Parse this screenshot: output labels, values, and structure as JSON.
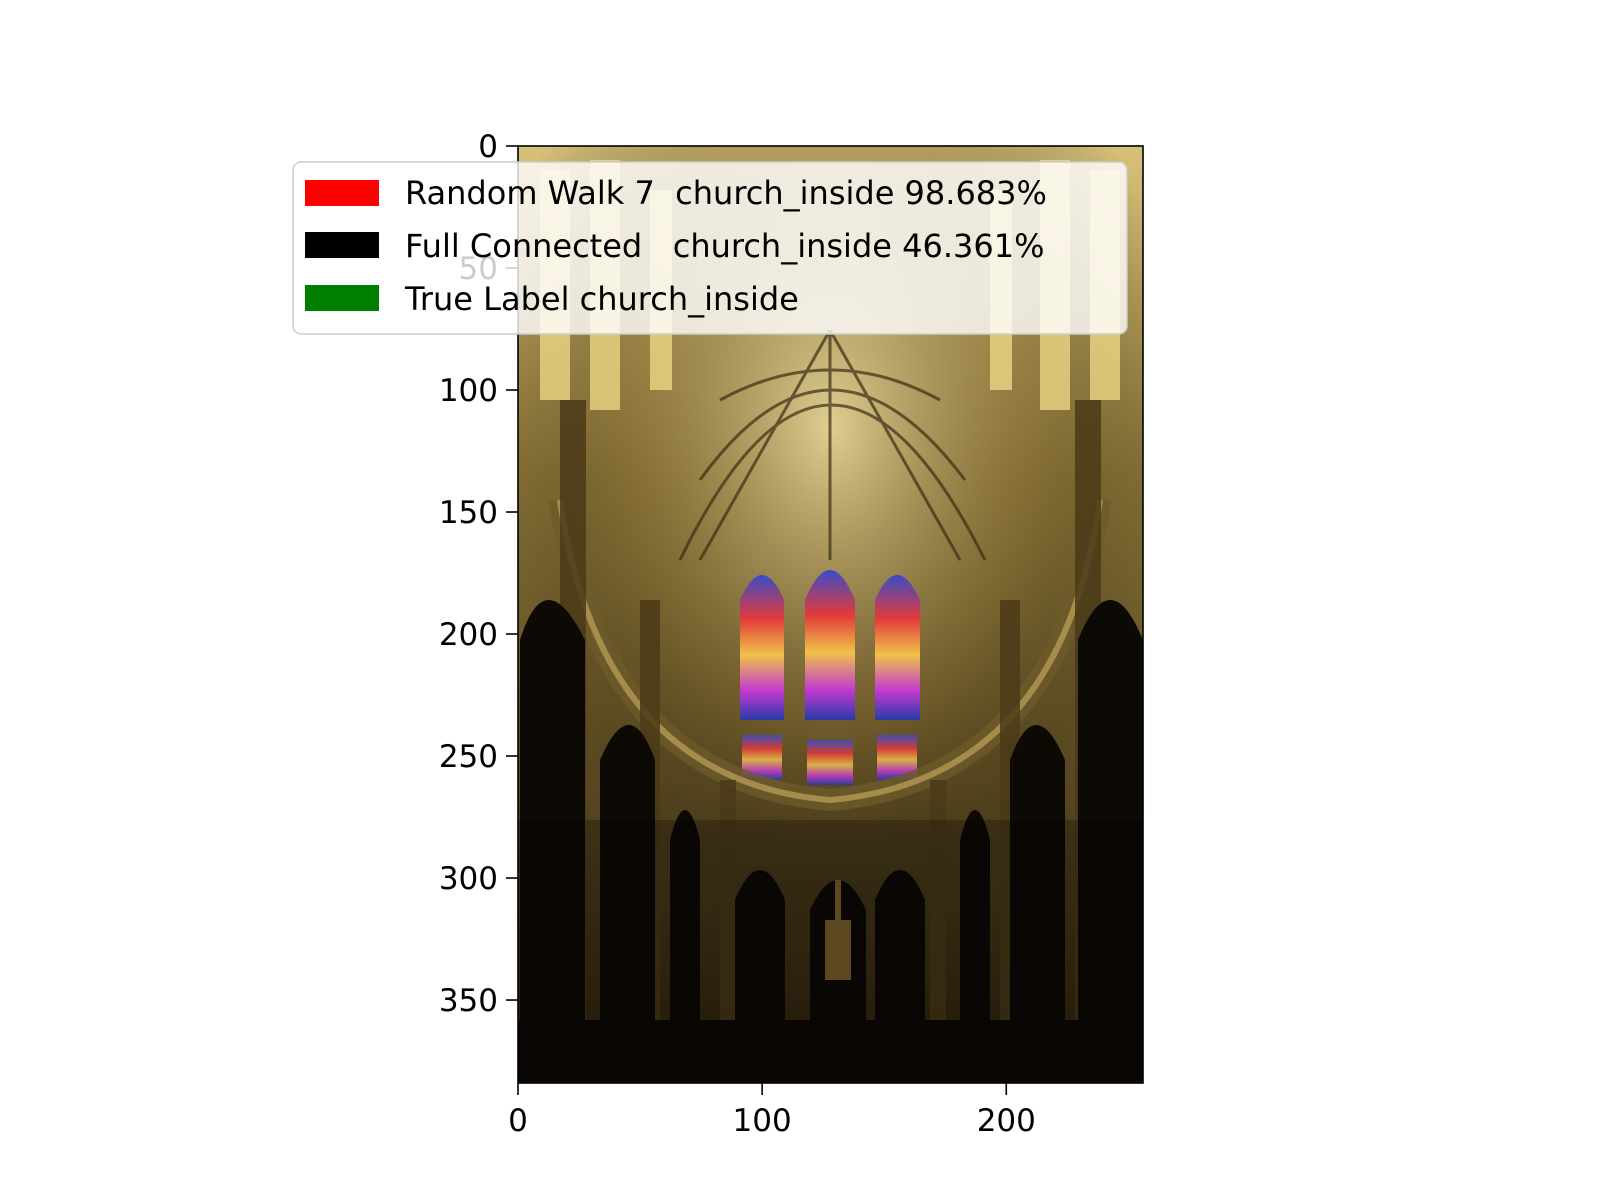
{
  "image": {
    "subject": "cathedral nave interior with vaulted ceiling and stained glass windows",
    "x_ticks": [
      "0",
      "100",
      "200"
    ],
    "y_ticks": [
      "0",
      "50",
      "100",
      "150",
      "200",
      "250",
      "300",
      "350"
    ],
    "x_tick_values": [
      0,
      100,
      200
    ],
    "y_tick_values": [
      0,
      50,
      100,
      150,
      200,
      250,
      300,
      350
    ],
    "width": 256,
    "height": 384
  },
  "legend": {
    "items": [
      {
        "label": "Random Walk 7  church_inside 98.683%",
        "color": "#ff0000"
      },
      {
        "label": "Full Connected   church_inside 46.361%",
        "color": "#000000"
      },
      {
        "label": "True Label church_inside",
        "color": "#008000"
      }
    ]
  }
}
